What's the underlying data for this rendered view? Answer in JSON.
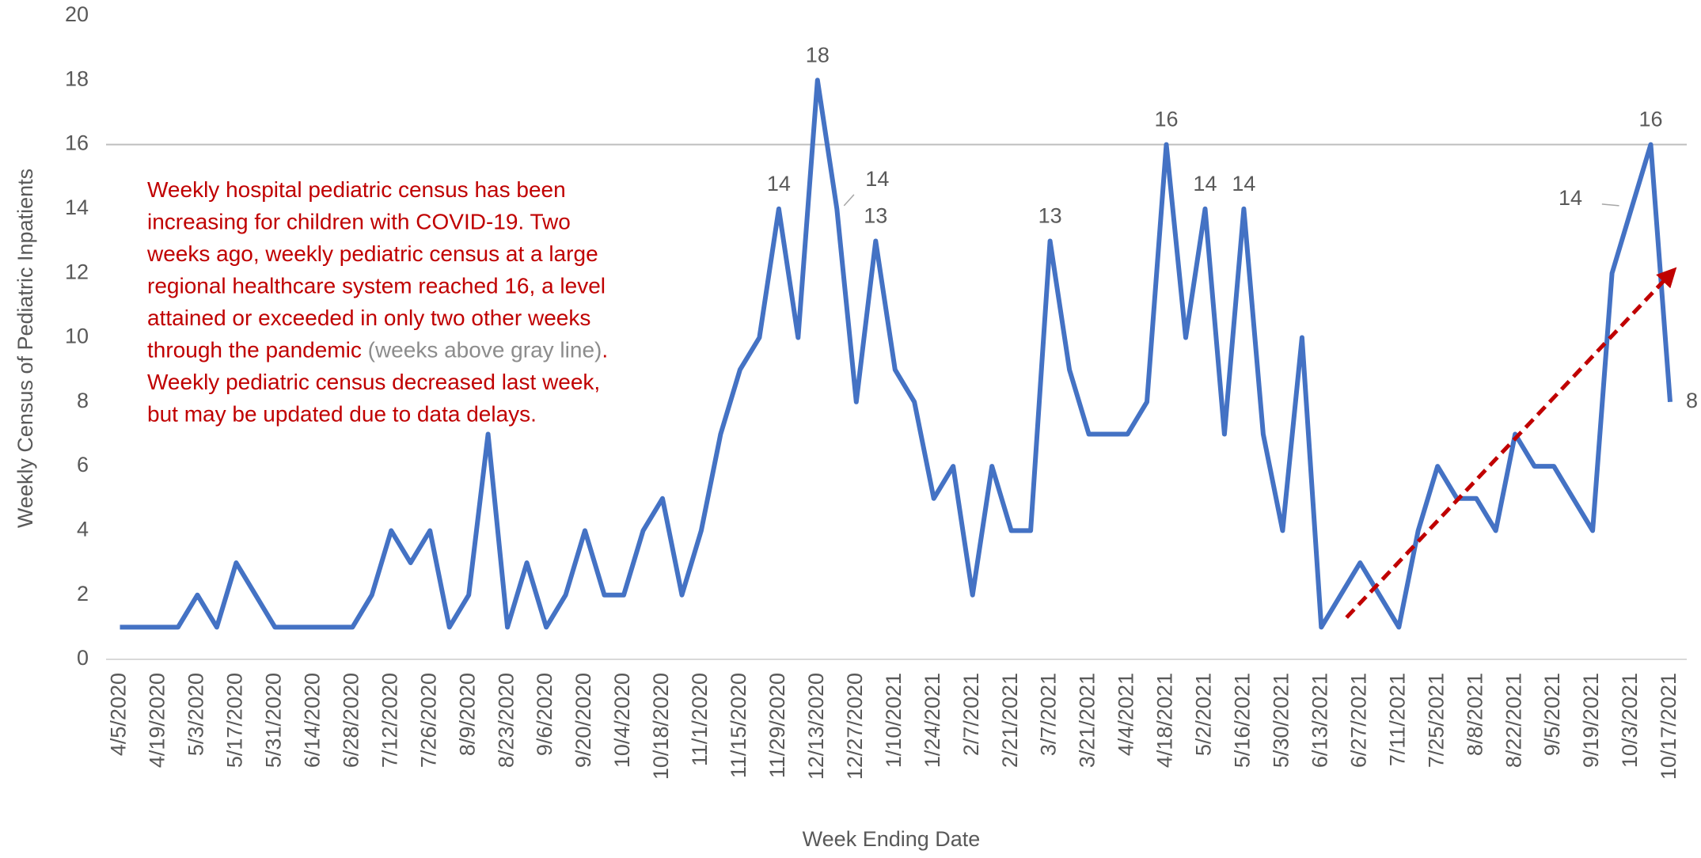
{
  "chart_data": {
    "type": "line",
    "xlabel": "Week Ending Date",
    "ylabel": "Weekly Census of Pediatric Inpatients",
    "categories": [
      "4/5/2020",
      null,
      "4/19/2020",
      null,
      "5/3/2020",
      null,
      "5/17/2020",
      null,
      "5/31/2020",
      null,
      "6/14/2020",
      null,
      "6/28/2020",
      null,
      "7/12/2020",
      null,
      "7/26/2020",
      null,
      "8/9/2020",
      null,
      "8/23/2020",
      null,
      "9/6/2020",
      null,
      "9/20/2020",
      null,
      "10/4/2020",
      null,
      "10/18/2020",
      null,
      "11/1/2020",
      null,
      "11/15/2020",
      null,
      "11/29/2020",
      null,
      "12/13/2020",
      null,
      "12/27/2020",
      null,
      "1/10/2021",
      null,
      "1/24/2021",
      null,
      "2/7/2021",
      null,
      "2/21/2021",
      null,
      "3/7/2021",
      null,
      "3/21/2021",
      null,
      "4/4/2021",
      null,
      "4/18/2021",
      null,
      "5/2/2021",
      null,
      "5/16/2021",
      null,
      "5/30/2021",
      null,
      "6/13/2021",
      null,
      "6/27/2021",
      null,
      "7/11/2021",
      null,
      "7/25/2021",
      null,
      "8/8/2021",
      null,
      "8/22/2021",
      null,
      "9/5/2021",
      null,
      "9/19/2021",
      null,
      "10/3/2021",
      null,
      "10/17/2021"
    ],
    "series": [
      {
        "name": "Weekly Census of Pediatric Inpatients",
        "color": "#4472c4",
        "values": [
          1,
          1,
          1,
          1,
          2,
          1,
          3,
          2,
          1,
          1,
          1,
          1,
          1,
          2,
          4,
          3,
          4,
          1,
          2,
          7,
          1,
          3,
          1,
          2,
          4,
          2,
          2,
          4,
          5,
          2,
          4,
          7,
          9,
          10,
          14,
          10,
          18,
          14,
          8,
          13,
          9,
          8,
          5,
          6,
          2,
          6,
          4,
          4,
          13,
          9,
          7,
          7,
          7,
          8,
          16,
          10,
          14,
          7,
          14,
          7,
          4,
          10,
          1,
          2,
          3,
          2,
          1,
          4,
          6,
          5,
          5,
          4,
          7,
          6,
          6,
          5,
          4,
          12,
          14,
          16,
          8
        ],
        "value_labels": [
          null,
          null,
          null,
          null,
          null,
          null,
          null,
          null,
          null,
          null,
          null,
          null,
          null,
          null,
          null,
          null,
          null,
          null,
          null,
          null,
          null,
          null,
          null,
          null,
          null,
          null,
          null,
          null,
          null,
          null,
          null,
          null,
          null,
          null,
          "14",
          null,
          "18",
          "14",
          null,
          "13",
          null,
          null,
          null,
          null,
          null,
          null,
          null,
          null,
          "13",
          null,
          null,
          null,
          null,
          null,
          "16",
          null,
          "14",
          null,
          "14",
          null,
          null,
          null,
          null,
          null,
          null,
          null,
          null,
          null,
          null,
          null,
          null,
          null,
          null,
          null,
          null,
          null,
          null,
          null,
          "14",
          "16",
          "8"
        ]
      }
    ],
    "ylim": [
      0,
      20
    ],
    "yticks": [
      0,
      2,
      4,
      6,
      8,
      10,
      12,
      14,
      16,
      18,
      20
    ],
    "reference_line": {
      "value": 16,
      "color": "#bfbfbf"
    },
    "trend_arrow": {
      "from": [
        63.3,
        1.3
      ],
      "to": [
        80.2,
        12.1
      ],
      "color": "#c00000"
    },
    "annotation": [
      [
        {
          "text": "Weekly hospital pediatric census has been",
          "color": "#c00000"
        }
      ],
      [
        {
          "text": "increasing for children with COVID-19. Two",
          "color": "#c00000"
        }
      ],
      [
        {
          "text": "weeks ago, weekly pediatric census at a large",
          "color": "#c00000"
        }
      ],
      [
        {
          "text": "regional healthcare system reached 16, a level",
          "color": "#c00000"
        }
      ],
      [
        {
          "text": "attained or exceeded in only two other weeks",
          "color": "#c00000"
        }
      ],
      [
        {
          "text": "through the pandemic ",
          "color": "#c00000"
        },
        {
          "text": "(weeks above gray line)",
          "color": "#8c8c8c"
        },
        {
          "text": ".",
          "color": "#c00000"
        }
      ],
      [
        {
          "text": "Weekly pediatric census decreased last week,",
          "color": "#c00000"
        }
      ],
      [
        {
          "text": "but may be updated due to data delays.",
          "color": "#c00000"
        }
      ]
    ]
  }
}
